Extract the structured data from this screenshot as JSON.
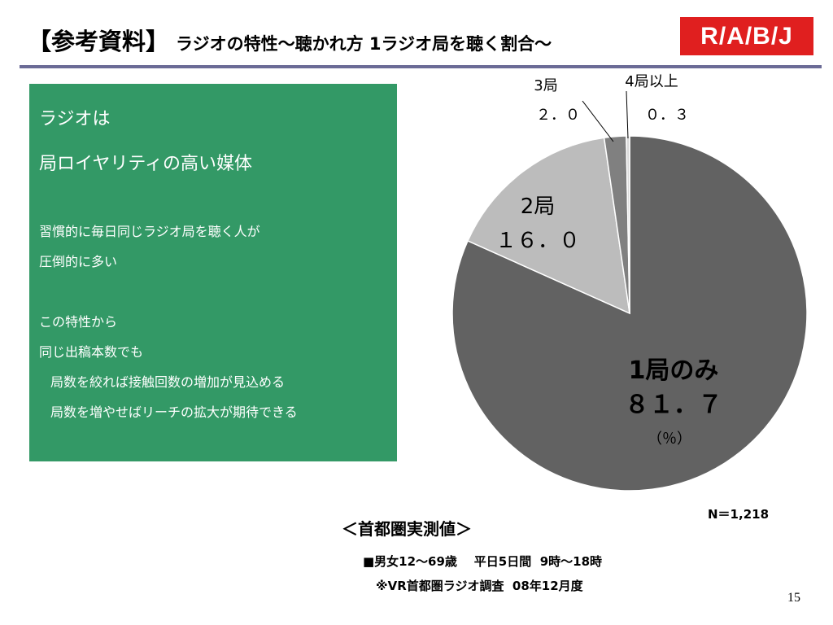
{
  "header": {
    "bracket_title": "【参考資料】",
    "title": "ラジオの特性～聴かれ方  1ラジオ局を聴く割合～",
    "logo_text": "R/A/B/J"
  },
  "sidebar_box": {
    "heading_lines": [
      "ラジオは",
      "局ロイヤリティの高い媒体"
    ],
    "paragraph1": [
      "習慣的に毎日同じラジオ局を聴く人が",
      "圧倒的に多い"
    ],
    "paragraph2": [
      "この特性から",
      "同じ出稿本数でも"
    ],
    "paragraph2_indented": [
      "局数を絞れば接触回数の増加が見込める",
      "局数を増やせばリーチの拡大が期待できる"
    ]
  },
  "chart_data": {
    "type": "pie",
    "unit": "（％）",
    "slices": [
      {
        "label": "1局のみ",
        "value": 81.7,
        "value_text": "８１．７",
        "color": "#626262"
      },
      {
        "label": "2局",
        "value": 16.0,
        "value_text": "１６．０",
        "color": "#bcbcbc"
      },
      {
        "label": "3局",
        "value": 2.0,
        "value_text": "２．０",
        "color": "#808080"
      },
      {
        "label": "4局以上",
        "value": 0.3,
        "value_text": "０．３",
        "color": "#d9d9d9"
      }
    ],
    "sample_size": "N＝1,218"
  },
  "footer": {
    "region": "＜首都圏実測値＞",
    "note1": "■男女12～69歳    平日5日間  9時～18時",
    "note2": "※VR首都圏ラジオ調査  08年12月度",
    "page_number": "15"
  },
  "colors": {
    "green_box": "#339966",
    "rule": "#6b6b96",
    "logo_red": "#e01f1f"
  }
}
